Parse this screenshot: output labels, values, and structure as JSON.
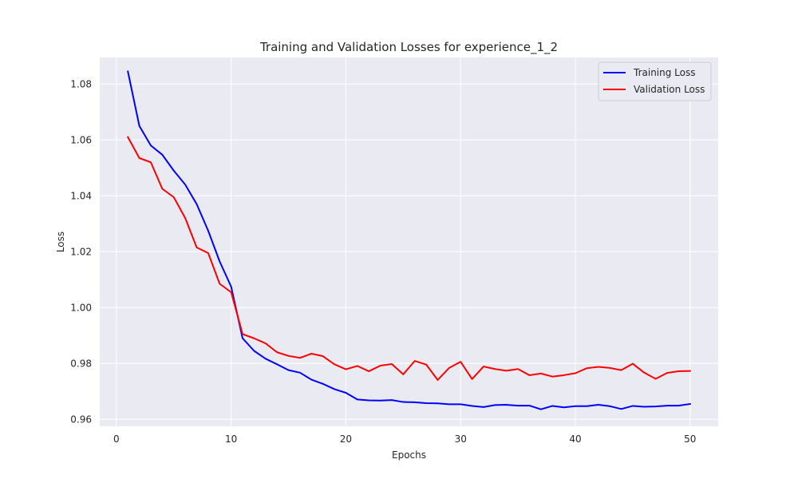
{
  "chart_data": {
    "type": "line",
    "title": "Training and Validation Losses for experience_1_2",
    "xlabel": "Epochs",
    "ylabel": "Loss",
    "xlim": [
      -1.45,
      52.45
    ],
    "ylim": [
      0.9575,
      1.0895
    ],
    "x_ticks": [
      0,
      10,
      20,
      30,
      40,
      50
    ],
    "x_tick_labels": [
      "0",
      "10",
      "20",
      "30",
      "40",
      "50"
    ],
    "y_ticks": [
      0.96,
      0.98,
      1.0,
      1.02,
      1.04,
      1.06,
      1.08
    ],
    "y_tick_labels": [
      "0.96",
      "0.98",
      "1.00",
      "1.02",
      "1.04",
      "1.06",
      "1.08"
    ],
    "grid": true,
    "background": "#eaeaf2",
    "grid_color": "#ffffff",
    "legend_position": "top-right",
    "x": [
      1,
      2,
      3,
      4,
      5,
      6,
      7,
      8,
      9,
      10,
      11,
      12,
      13,
      14,
      15,
      16,
      17,
      18,
      19,
      20,
      21,
      22,
      23,
      24,
      25,
      26,
      27,
      28,
      29,
      30,
      31,
      32,
      33,
      34,
      35,
      36,
      37,
      38,
      39,
      40,
      41,
      42,
      43,
      44,
      45,
      46,
      47,
      48,
      49,
      50
    ],
    "series": [
      {
        "name": "Training Loss",
        "color": "#0000ff",
        "values": [
          1.0845,
          1.065,
          1.058,
          1.0547,
          1.049,
          1.044,
          1.037,
          1.0275,
          1.0165,
          1.0075,
          0.989,
          0.9845,
          0.9817,
          0.9797,
          0.9776,
          0.9767,
          0.9742,
          0.9727,
          0.9708,
          0.9695,
          0.9671,
          0.9668,
          0.9667,
          0.9669,
          0.9662,
          0.9661,
          0.9658,
          0.9657,
          0.9654,
          0.9654,
          0.9648,
          0.9644,
          0.9651,
          0.9652,
          0.9649,
          0.9649,
          0.9636,
          0.9648,
          0.9643,
          0.9647,
          0.9647,
          0.9652,
          0.9647,
          0.9637,
          0.9648,
          0.9645,
          0.9646,
          0.9649,
          0.9649,
          0.9655
        ]
      },
      {
        "name": "Validation Loss",
        "color": "#ff0000",
        "values": [
          1.061,
          1.0535,
          1.052,
          1.0425,
          1.0395,
          1.032,
          1.0215,
          1.0195,
          1.0085,
          1.0055,
          0.9905,
          0.989,
          0.9872,
          0.984,
          0.9827,
          0.982,
          0.9835,
          0.9826,
          0.9797,
          0.9779,
          0.9791,
          0.9772,
          0.9792,
          0.9798,
          0.9761,
          0.9809,
          0.9796,
          0.9741,
          0.9784,
          0.9806,
          0.9744,
          0.9789,
          0.978,
          0.9774,
          0.978,
          0.9758,
          0.9764,
          0.9753,
          0.9758,
          0.9765,
          0.9783,
          0.9788,
          0.9784,
          0.9776,
          0.9799,
          0.9767,
          0.9745,
          0.9766,
          0.9772,
          0.9773
        ]
      }
    ]
  }
}
